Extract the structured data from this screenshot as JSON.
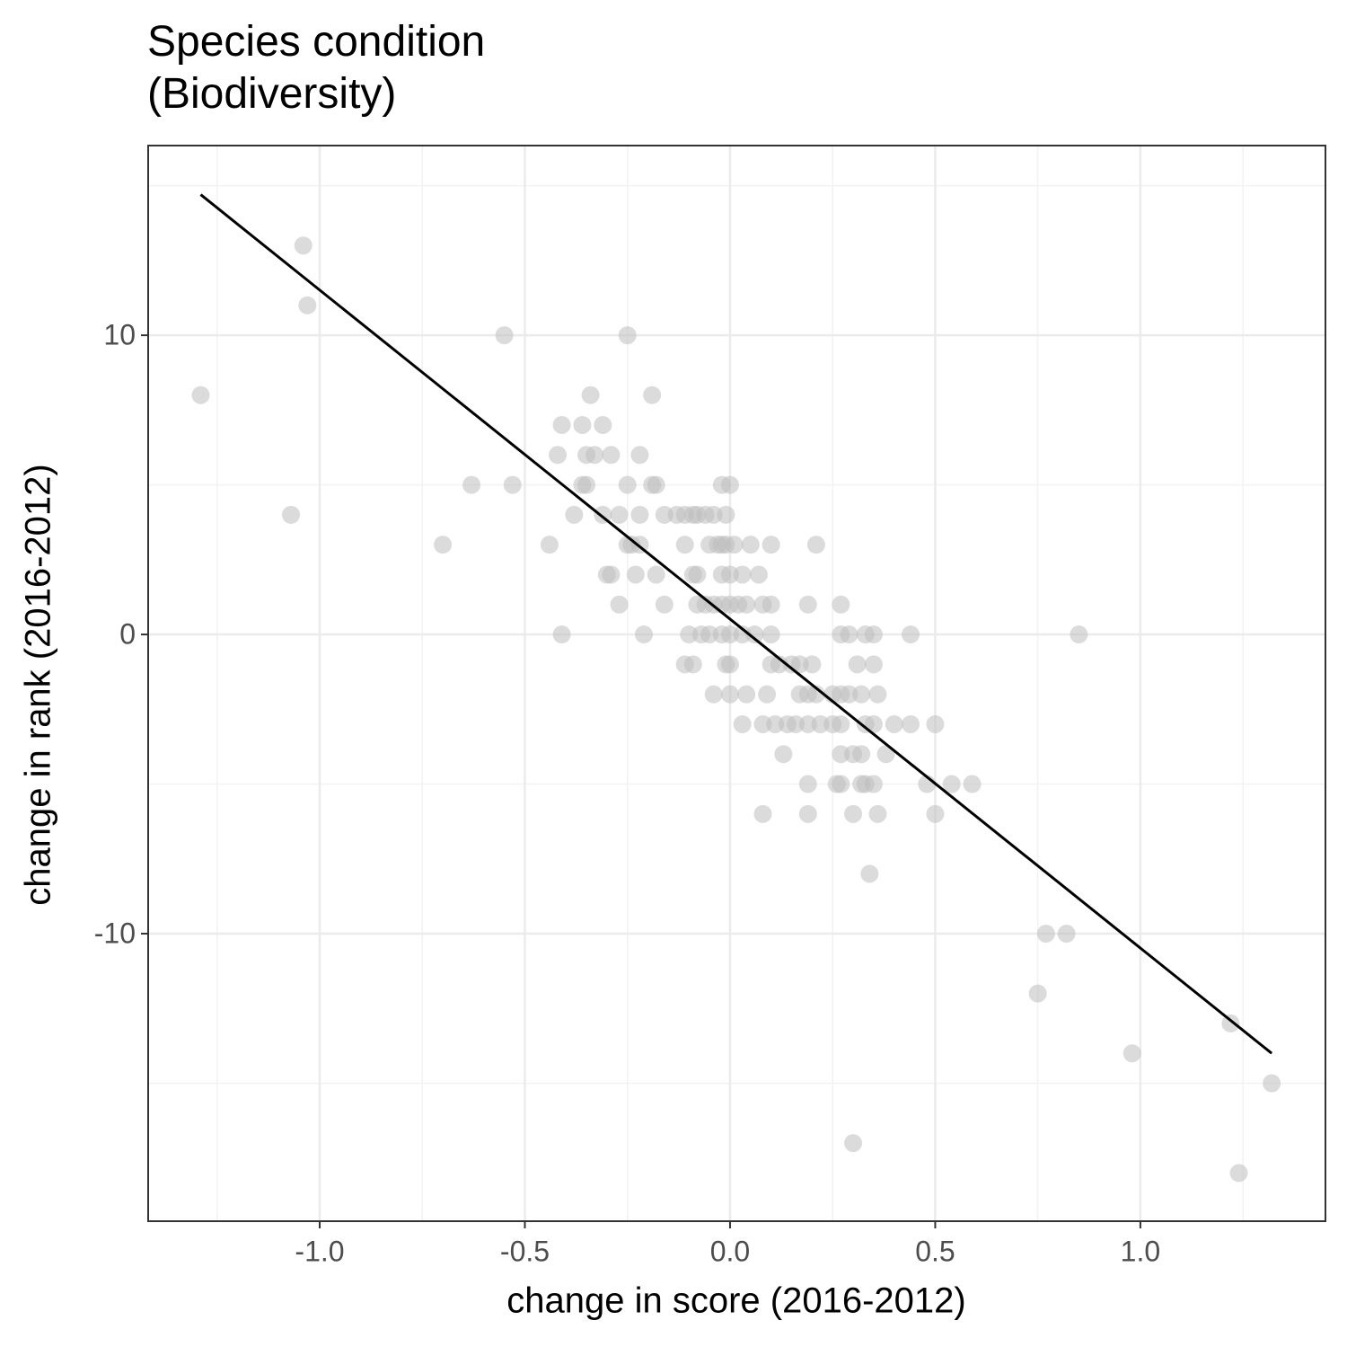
{
  "chart_data": {
    "type": "scatter",
    "title": "Species condition\n(Biodiversity)",
    "x_label": "change in score (2016-2012)",
    "y_label": "change in rank (2016-2012)",
    "x": [
      -1.29,
      -1.04,
      -1.03,
      -1.07,
      -0.7,
      -0.63,
      -0.53,
      -0.55,
      -0.25,
      -0.44,
      -0.41,
      -0.42,
      -0.41,
      -0.36,
      -0.31,
      -0.34,
      -0.19,
      -0.36,
      -0.35,
      -0.35,
      -0.33,
      -0.29,
      -0.22,
      -0.38,
      -0.31,
      -0.27,
      -0.22,
      -0.25,
      -0.19,
      -0.18,
      -0.25,
      -0.24,
      -0.22,
      -0.3,
      -0.29,
      -0.23,
      -0.18,
      -0.27,
      -0.16,
      -0.21,
      -0.16,
      -0.13,
      -0.11,
      -0.09,
      -0.08,
      -0.06,
      -0.04,
      -0.01,
      -0.02,
      0.0,
      -0.11,
      -0.05,
      -0.03,
      -0.02,
      -0.01,
      0.01,
      0.05,
      0.1,
      0.21,
      -0.09,
      -0.08,
      -0.02,
      0.0,
      0.03,
      0.07,
      -0.08,
      -0.06,
      -0.04,
      -0.02,
      0.0,
      0.02,
      0.04,
      0.08,
      0.1,
      0.19,
      0.27,
      -0.1,
      -0.07,
      -0.05,
      -0.02,
      0.0,
      0.03,
      0.06,
      0.1,
      0.27,
      0.29,
      0.33,
      0.35,
      0.44,
      0.85,
      -0.11,
      -0.09,
      -0.01,
      0.0,
      0.1,
      0.12,
      0.15,
      0.17,
      0.2,
      0.31,
      0.35,
      -0.04,
      0.0,
      0.04,
      0.09,
      0.17,
      0.19,
      0.21,
      0.25,
      0.27,
      0.29,
      0.32,
      0.36,
      0.03,
      0.08,
      0.11,
      0.14,
      0.16,
      0.19,
      0.22,
      0.25,
      0.27,
      0.33,
      0.35,
      0.4,
      0.44,
      0.5,
      0.13,
      0.27,
      0.3,
      0.32,
      0.38,
      0.19,
      0.26,
      0.27,
      0.32,
      0.33,
      0.35,
      0.48,
      0.54,
      0.59,
      0.08,
      0.19,
      0.3,
      0.36,
      0.5,
      0.34,
      0.77,
      0.82,
      0.75,
      1.22,
      0.98,
      1.32,
      0.3,
      1.24
    ],
    "y": [
      8,
      13,
      11,
      4,
      3,
      5,
      5,
      10,
      10,
      3,
      0,
      6,
      7,
      7,
      7,
      8,
      8,
      5,
      5,
      6,
      6,
      6,
      6,
      4,
      4,
      4,
      4,
      5,
      5,
      5,
      3,
      3,
      3,
      2,
      2,
      2,
      2,
      1,
      1,
      0,
      4,
      4,
      4,
      4,
      4,
      4,
      4,
      4,
      5,
      5,
      3,
      3,
      3,
      3,
      3,
      3,
      3,
      3,
      3,
      2,
      2,
      2,
      2,
      2,
      2,
      1,
      1,
      1,
      1,
      1,
      1,
      1,
      1,
      1,
      1,
      1,
      0,
      0,
      0,
      0,
      0,
      0,
      0,
      0,
      0,
      0,
      0,
      0,
      0,
      0,
      -1,
      -1,
      -1,
      -1,
      -1,
      -1,
      -1,
      -1,
      -1,
      -1,
      -1,
      -2,
      -2,
      -2,
      -2,
      -2,
      -2,
      -2,
      -2,
      -2,
      -2,
      -2,
      -2,
      -3,
      -3,
      -3,
      -3,
      -3,
      -3,
      -3,
      -3,
      -3,
      -3,
      -3,
      -3,
      -3,
      -3,
      -4,
      -4,
      -4,
      -4,
      -4,
      -5,
      -5,
      -5,
      -5,
      -5,
      -5,
      -5,
      -5,
      -5,
      -6,
      -6,
      -6,
      -6,
      -6,
      -8,
      -10,
      -10,
      -12,
      -13,
      -14,
      -15,
      -17,
      -18
    ],
    "color": "#bdbdbd",
    "trend_line": {
      "x": [
        -1.29,
        1.32
      ],
      "y": [
        14.7,
        -14.0
      ],
      "color": "#000000"
    },
    "xlim": [
      -1.418,
      1.451
    ],
    "ylim": [
      -19.61,
      16.34
    ],
    "xticks": [
      {
        "value": -1,
        "label": "-1.0"
      },
      {
        "value": -0.5,
        "label": "-0.5"
      },
      {
        "value": 0,
        "label": "0.0"
      },
      {
        "value": 0.5,
        "label": "0.5"
      },
      {
        "value": 1,
        "label": "1.0"
      }
    ],
    "yticks": [
      -10,
      0,
      10
    ],
    "grid": true
  }
}
